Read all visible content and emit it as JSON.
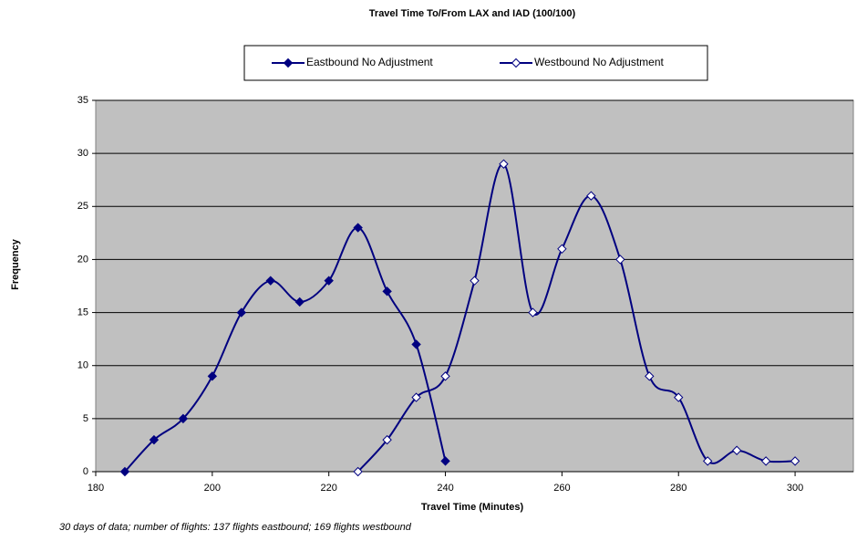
{
  "chart_data": {
    "type": "line",
    "title": "Travel Time To/From LAX and IAD (100/100)",
    "x_label": "Travel Time (Minutes)",
    "y_label": "Frequency",
    "note": "30 days of data; number of flights: 137 flights eastbound; 169 flights westbound",
    "xlim": [
      180,
      310
    ],
    "xticks": [
      180,
      200,
      220,
      240,
      260,
      280,
      300
    ],
    "ylim": [
      0,
      35
    ],
    "yticks": [
      0,
      5,
      10,
      15,
      20,
      25,
      30,
      35
    ],
    "grid": true,
    "series": [
      {
        "name": "Eastbound No Adjustment",
        "color": "#000080",
        "marker_fill": "#000080",
        "x": [
          185,
          190,
          195,
          200,
          205,
          210,
          215,
          220,
          225,
          230,
          235,
          240
        ],
        "values": [
          0,
          3,
          5,
          9,
          15,
          18,
          16,
          18,
          23,
          17,
          12,
          1
        ]
      },
      {
        "name": "Westbound No Adjustment",
        "color": "#000080",
        "marker_fill": "#ffffff",
        "x": [
          225,
          230,
          235,
          240,
          245,
          250,
          255,
          260,
          265,
          270,
          275,
          280,
          285,
          290,
          295,
          300
        ],
        "values": [
          0,
          3,
          7,
          9,
          18,
          29,
          15,
          21,
          26,
          20,
          9,
          7,
          1,
          2,
          1,
          1
        ]
      }
    ]
  }
}
